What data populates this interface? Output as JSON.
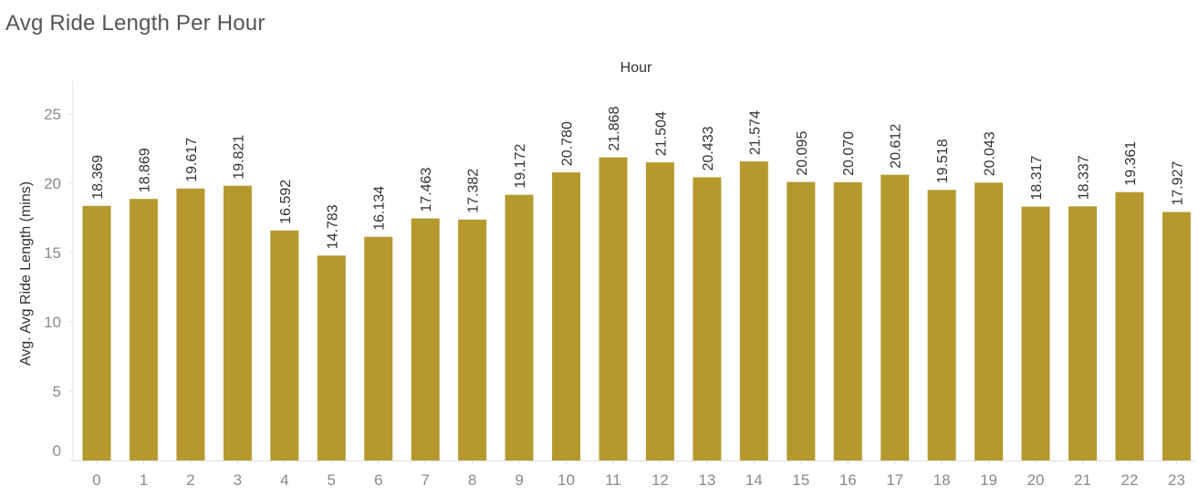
{
  "page": {
    "title": "Avg Ride Length Per Hour"
  },
  "colors": {
    "bar": "#b5992e",
    "axis_text": "#8a8a8a",
    "label_text": "#333333",
    "axis_title": "#333333",
    "grid_line": "#e6e6e6",
    "zero_line": "#dddddd"
  },
  "chart_data": {
    "type": "bar",
    "title": "Avg Ride Length Per Hour",
    "xlabel": "Hour",
    "ylabel": "Avg. Avg Ride Length (mins)",
    "x_axis_position": "top",
    "grid": false,
    "ylim": [
      0,
      27.5
    ],
    "yticks": [
      0,
      5,
      10,
      15,
      20,
      25
    ],
    "categories": [
      "0",
      "1",
      "2",
      "3",
      "4",
      "5",
      "6",
      "7",
      "8",
      "9",
      "10",
      "11",
      "12",
      "13",
      "14",
      "15",
      "16",
      "17",
      "18",
      "19",
      "20",
      "21",
      "22",
      "23"
    ],
    "values": [
      18.369,
      18.869,
      19.617,
      19.821,
      16.592,
      14.783,
      16.134,
      17.463,
      17.382,
      19.172,
      20.78,
      21.868,
      21.504,
      20.433,
      21.574,
      20.095,
      20.07,
      20.612,
      19.518,
      20.043,
      18.317,
      18.337,
      19.361,
      17.927
    ],
    "value_labels": [
      "18.369",
      "18.869",
      "19.617",
      "19.821",
      "16.592",
      "14.783",
      "16.134",
      "17.463",
      "17.382",
      "19.172",
      "20.780",
      "21.868",
      "21.504",
      "20.433",
      "21.574",
      "20.095",
      "20.070",
      "20.612",
      "19.518",
      "20.043",
      "18.317",
      "18.337",
      "19.361",
      "17.927"
    ]
  }
}
